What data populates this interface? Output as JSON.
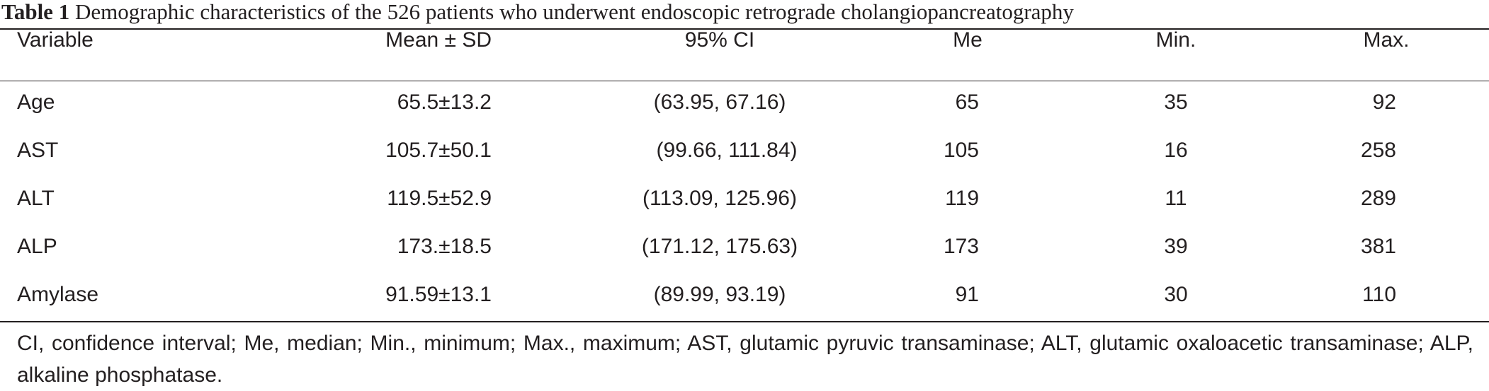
{
  "table": {
    "caption_label": "Table 1",
    "caption_text": "Demographic characteristics of the 526 patients who underwent endoscopic retrograde cholangiopancreatography",
    "headers": {
      "variable": "Variable",
      "mean_sd": "Mean ± SD",
      "ci": "95% CI",
      "me": "Me",
      "min": "Min.",
      "max": "Max."
    },
    "rows": [
      {
        "variable": "Age",
        "mean_sd": "65.5±13.2",
        "ci": "(63.95, 67.16)",
        "me": "65",
        "min": "35",
        "max": "92"
      },
      {
        "variable": "AST",
        "mean_sd": "105.7±50.1",
        "ci": "(99.66, 111.84)",
        "me": "105",
        "min": "16",
        "max": "258"
      },
      {
        "variable": "ALT",
        "mean_sd": "119.5±52.9",
        "ci": "(113.09, 125.96)",
        "me": "119",
        "min": "11",
        "max": "289"
      },
      {
        "variable": "ALP",
        "mean_sd": "173.±18.5",
        "ci": "(171.12, 175.63)",
        "me": "173",
        "min": "39",
        "max": "381"
      },
      {
        "variable": "Amylase",
        "mean_sd": "91.59±13.1",
        "ci": "(89.99, 93.19)",
        "me": "91",
        "min": "30",
        "max": "110"
      }
    ],
    "footnote": "CI, confidence interval; Me, median; Min., minimum; Max., maximum; AST, glutamic pyruvic transaminase; ALT, glutamic oxaloacetic transaminase; ALP, alkaline phosphatase."
  }
}
